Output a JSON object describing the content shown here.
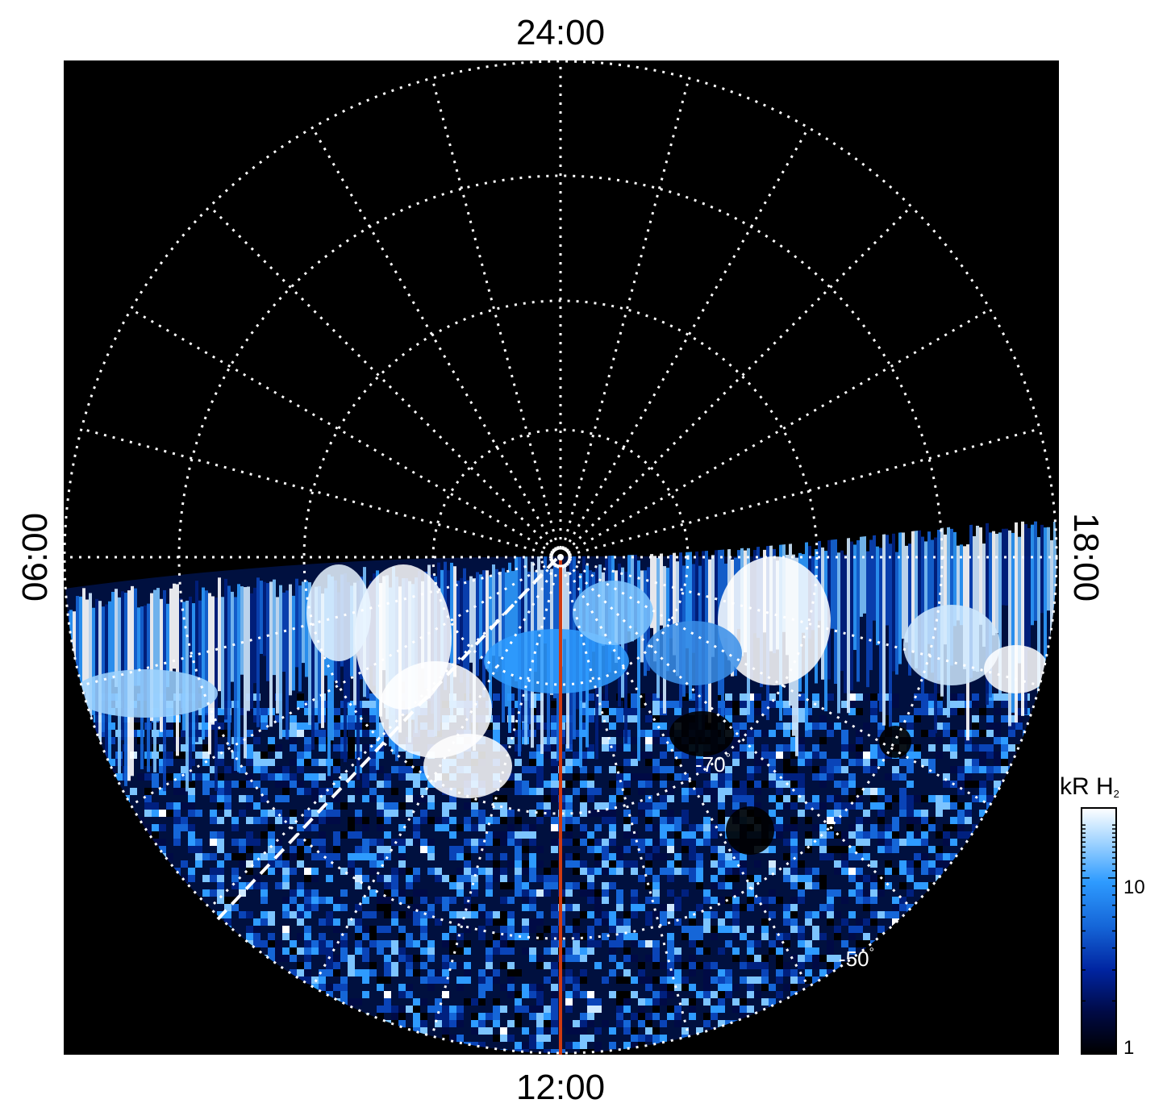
{
  "local_time_labels": {
    "top": "24:00",
    "bottom": "12:00",
    "left": "06:00",
    "right": "18:00"
  },
  "latitude_labels": {
    "inner": "-70",
    "outer": "-50",
    "degree_symbol": "°"
  },
  "colorbar": {
    "title_main": "kR H",
    "title_sub": "2",
    "tick_high": "10",
    "tick_low": "1",
    "colors": [
      "#000000",
      "#000a45",
      "#0024a0",
      "#1566d8",
      "#2e9bff",
      "#9fd3ff",
      "#ffffff"
    ]
  },
  "colors": {
    "background": "#000000",
    "grid": "#ffffff",
    "meridian": "#d03a10",
    "aurora_dark": "#001f7a",
    "aurora_mid": "#1d7ff0",
    "aurora_bright": "#ffffff"
  }
}
